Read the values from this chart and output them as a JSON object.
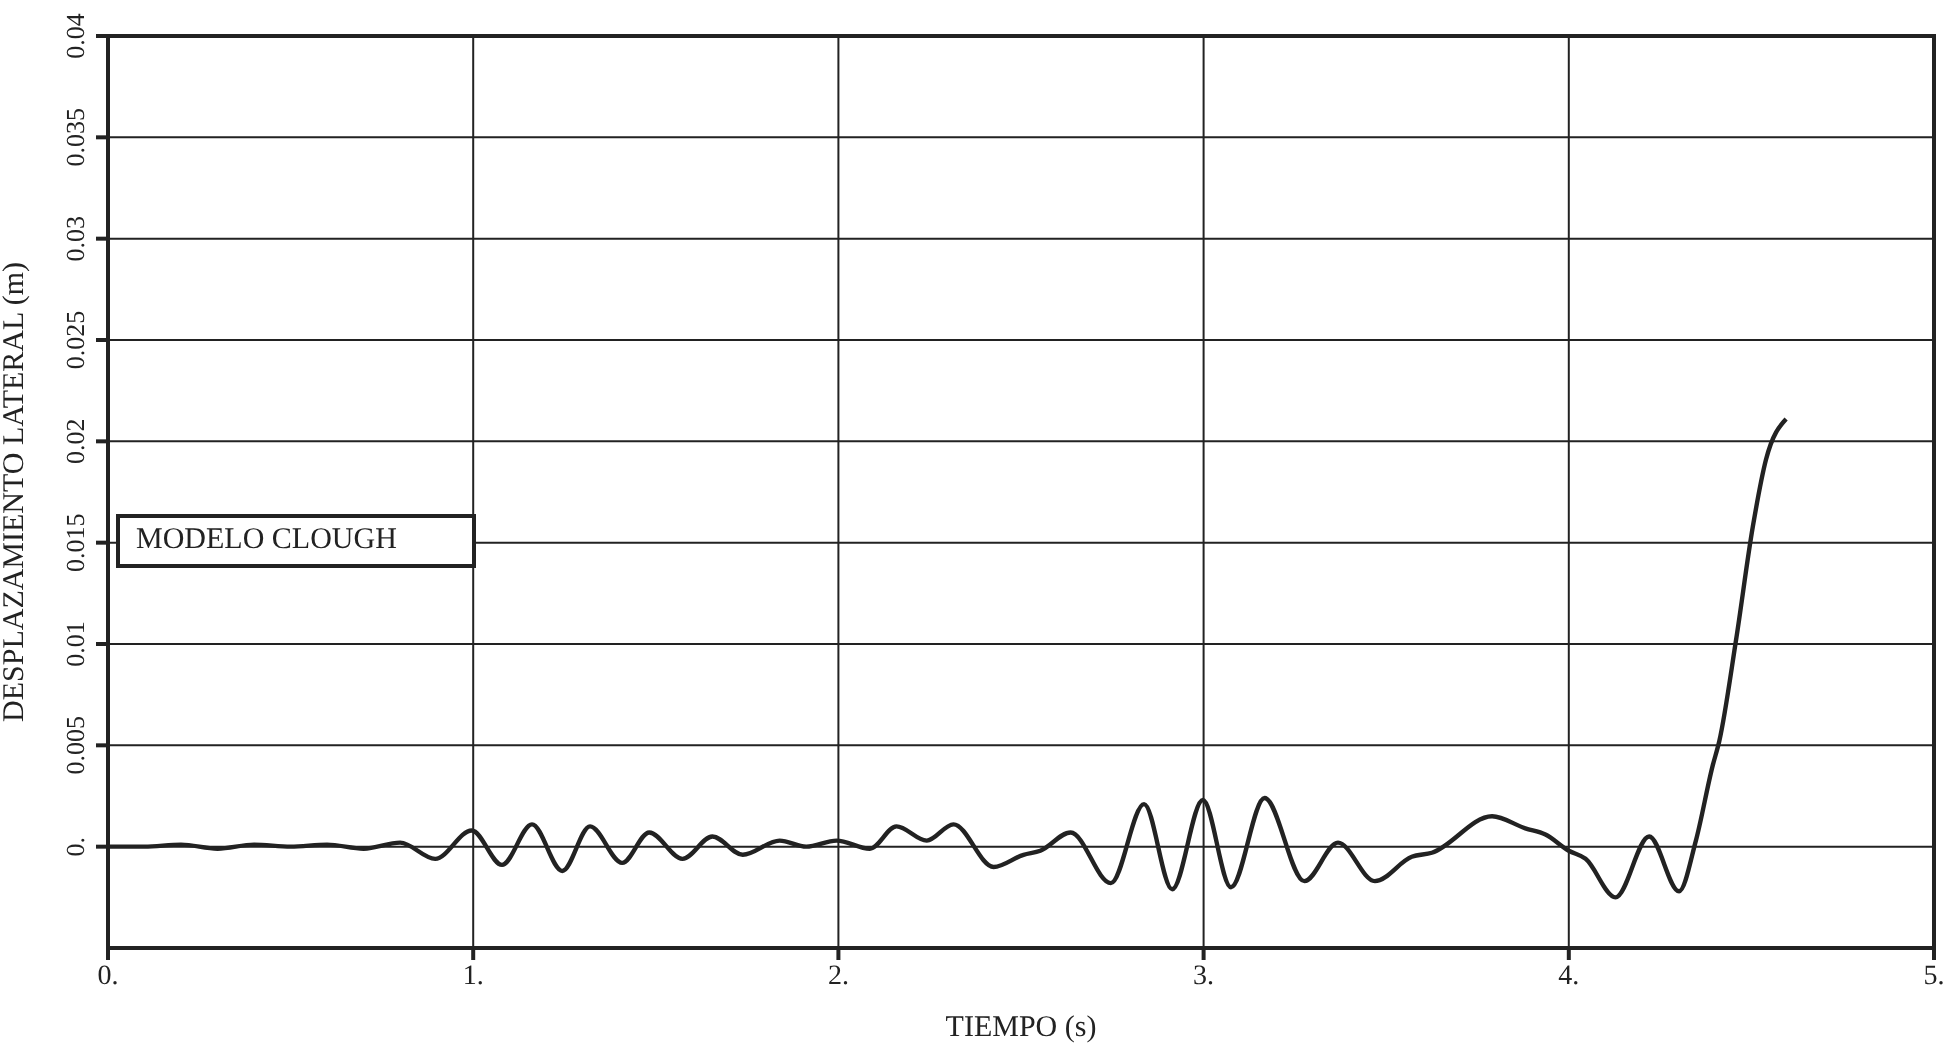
{
  "chart_data": {
    "type": "line",
    "xlabel": "TIEMPO (s)",
    "ylabel": "DESPLAZAMIENTO LATERAL (m)",
    "annotations": [
      "MODELO CLOUGH"
    ],
    "xlim": [
      0,
      5
    ],
    "xticks": [
      {
        "value": 0,
        "label": "0."
      },
      {
        "value": 1,
        "label": "1."
      },
      {
        "value": 2,
        "label": "2."
      },
      {
        "value": 3,
        "label": "3."
      },
      {
        "value": 4,
        "label": "4."
      },
      {
        "value": 5,
        "label": "5."
      }
    ],
    "ylim": [
      -0.005,
      0.04
    ],
    "yticks": [
      {
        "value": 0,
        "label": "0."
      },
      0.005,
      0.01,
      0.015,
      0.02,
      0.025,
      0.03,
      0.035,
      0.04
    ],
    "grid": true,
    "marker": "none",
    "line_style": "solid",
    "series": [
      {
        "color": "#222222",
        "x": [
          0,
          0.1,
          0.2,
          0.3,
          0.4,
          0.5,
          0.6,
          0.7,
          0.8,
          0.896,
          0.996,
          1.079,
          1.161,
          1.244,
          1.32,
          1.408,
          1.482,
          1.573,
          1.655,
          1.738,
          1.839,
          1.912,
          1.995,
          2.086,
          2.159,
          2.242,
          2.315,
          2.425,
          2.507,
          2.553,
          2.636,
          2.746,
          2.837,
          2.914,
          2.998,
          3.075,
          3.167,
          3.276,
          3.368,
          3.469,
          3.57,
          3.625,
          3.79,
          3.881,
          3.936,
          4.0,
          4.046,
          4.128,
          4.22,
          4.302,
          4.348,
          4.394,
          4.412,
          4.458,
          4.504,
          4.54,
          4.595
        ],
        "values": [
          0,
          0,
          0.0001,
          -0.0001,
          0.0001,
          0,
          0.0001,
          -0.0001,
          0.0002,
          -0.0006,
          0.0008,
          -0.0009,
          0.0011,
          -0.0012,
          0.001,
          -0.0008,
          0.0007,
          -0.0006,
          0.0005,
          -0.0004,
          0.0003,
          0,
          0.0003,
          -0.0001,
          0.001,
          0.0003,
          0.0011,
          -0.001,
          -0.0004,
          -0.0002,
          0.0007,
          -0.0018,
          0.0021,
          -0.0021,
          0.0023,
          -0.002,
          0.0024,
          -0.0017,
          0.0002,
          -0.0017,
          -0.0005,
          -0.0003,
          0.0015,
          0.0009,
          0.0006,
          -0.0002,
          -0.0006,
          -0.0025,
          0.0005,
          -0.0022,
          0.0003,
          0.004,
          0.0052,
          0.0102,
          0.0158,
          0.0191,
          0.0211
        ]
      }
    ]
  }
}
